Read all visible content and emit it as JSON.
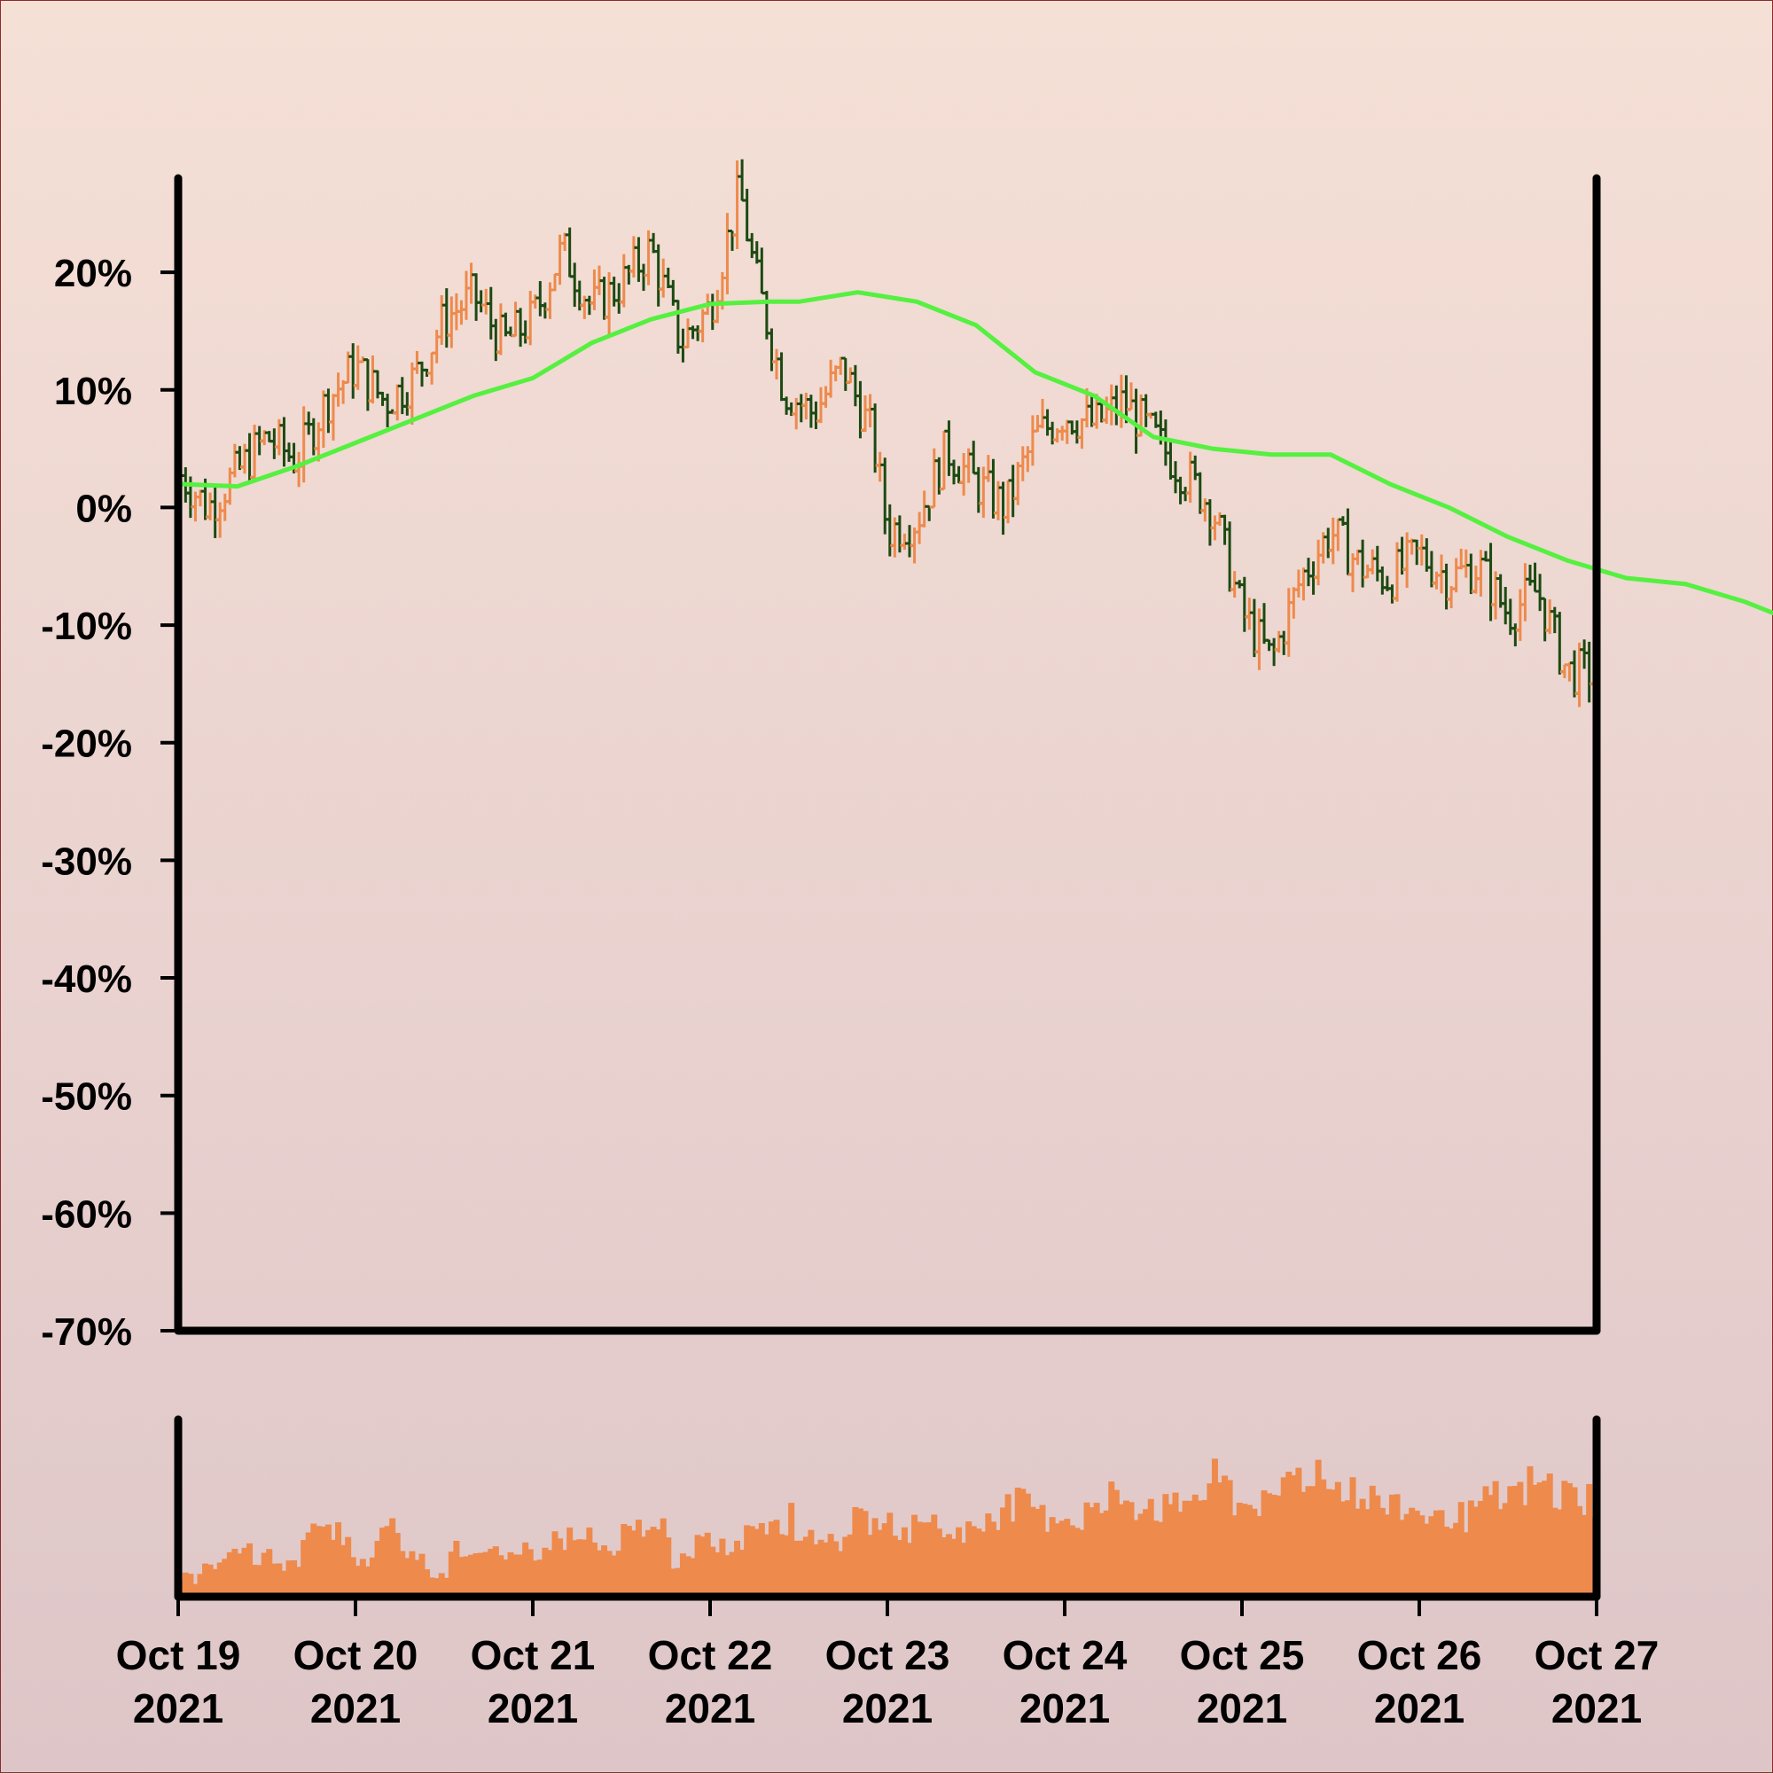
{
  "chart_data": {
    "type": "ohlc",
    "title": "",
    "xlabel": "",
    "ylabel": "",
    "y_unit": "%",
    "ylim": [
      -70,
      28
    ],
    "yticks": [
      20,
      10,
      0,
      -10,
      -20,
      -30,
      -40,
      -50,
      -60,
      -70
    ],
    "ytick_labels": [
      "20%",
      "10%",
      "0%",
      "-10%",
      "-20%",
      "-30%",
      "-40%",
      "-50%",
      "-60%",
      "-70%"
    ],
    "xlim": [
      "2021-10-19",
      "2021-10-27"
    ],
    "xtick_dates": [
      "2021-10-19",
      "2021-10-20",
      "2021-10-21",
      "2021-10-22",
      "2021-10-23",
      "2021-10-24",
      "2021-10-25",
      "2021-10-26",
      "2021-10-27"
    ],
    "xtick_labels": [
      {
        "line1": "Oct 19",
        "line2": "2021"
      },
      {
        "line1": "Oct 20",
        "line2": "2021"
      },
      {
        "line1": "Oct 21",
        "line2": "2021"
      },
      {
        "line1": "Oct 22",
        "line2": "2021"
      },
      {
        "line1": "Oct 23",
        "line2": "2021"
      },
      {
        "line1": "Oct 24",
        "line2": "2021"
      },
      {
        "line1": "Oct 25",
        "line2": "2021"
      },
      {
        "line1": "Oct 26",
        "line2": "2021"
      },
      {
        "line1": "Oct 27",
        "line2": "2021"
      }
    ],
    "grid": false,
    "legend": "none",
    "colors": {
      "up": "#ee8a4c",
      "down": "#1c4a12",
      "moving_average": "#55f040",
      "volume": "#ee8a4c",
      "axes": "#000000"
    },
    "close_path": [
      [
        "2021-10-19T00:00",
        3
      ],
      [
        "2021-10-19T04:00",
        0
      ],
      [
        "2021-10-19T08:00",
        3
      ],
      [
        "2021-10-19T12:00",
        6
      ],
      [
        "2021-10-19T16:00",
        4
      ],
      [
        "2021-10-19T20:00",
        9
      ],
      [
        "2021-10-20T00:00",
        12
      ],
      [
        "2021-10-20T04:00",
        9
      ],
      [
        "2021-10-20T08:00",
        11
      ],
      [
        "2021-10-20T12:00",
        16
      ],
      [
        "2021-10-20T16:00",
        18
      ],
      [
        "2021-10-20T20:00",
        14
      ],
      [
        "2021-10-21T00:00",
        16
      ],
      [
        "2021-10-21T04:00",
        22
      ],
      [
        "2021-10-21T08:00",
        17
      ],
      [
        "2021-10-21T12:00",
        19
      ],
      [
        "2021-10-21T16:00",
        22
      ],
      [
        "2021-10-21T20:00",
        14
      ],
      [
        "2021-10-22T00:00",
        17
      ],
      [
        "2021-10-22T04:00",
        27
      ],
      [
        "2021-10-22T06:00",
        20
      ],
      [
        "2021-10-22T10:00",
        10
      ],
      [
        "2021-10-22T14:00",
        8
      ],
      [
        "2021-10-22T18:00",
        12
      ],
      [
        "2021-10-22T22:00",
        6
      ],
      [
        "2021-10-23T00:00",
        -2
      ],
      [
        "2021-10-23T04:00",
        -1
      ],
      [
        "2021-10-23T08:00",
        5
      ],
      [
        "2021-10-23T12:00",
        2
      ],
      [
        "2021-10-23T16:00",
        0
      ],
      [
        "2021-10-23T20:00",
        6
      ],
      [
        "2021-10-24T00:00",
        8
      ],
      [
        "2021-10-24T04:00",
        7
      ],
      [
        "2021-10-24T08:00",
        9
      ],
      [
        "2021-10-24T12:00",
        6
      ],
      [
        "2021-10-24T16:00",
        3
      ],
      [
        "2021-10-24T20:00",
        0
      ],
      [
        "2021-10-25T00:00",
        -9
      ],
      [
        "2021-10-25T04:00",
        -13
      ],
      [
        "2021-10-25T08:00",
        -6
      ],
      [
        "2021-10-25T12:00",
        -2
      ],
      [
        "2021-10-25T16:00",
        -5
      ],
      [
        "2021-10-25T20:00",
        -6
      ],
      [
        "2021-10-26T00:00",
        -4
      ],
      [
        "2021-10-26T04:00",
        -6
      ],
      [
        "2021-10-26T08:00",
        -5
      ],
      [
        "2021-10-26T12:00",
        -9
      ],
      [
        "2021-10-26T16:00",
        -7
      ],
      [
        "2021-10-26T20:00",
        -14
      ],
      [
        "2021-10-27T00:00",
        -14
      ],
      [
        "2021-10-27T04:00",
        -16
      ],
      [
        "2021-10-27T08:00",
        -11
      ],
      [
        "2021-10-27T12:00",
        -8
      ],
      [
        "2021-10-27T16:00",
        -5
      ],
      [
        "2021-10-27T20:00",
        -8
      ],
      [
        "2021-10-28T00:00",
        -9
      ]
    ],
    "moving_average": [
      [
        "2021-10-19T00:00",
        2
      ],
      [
        "2021-10-19T08:00",
        1.8
      ],
      [
        "2021-10-19T16:00",
        3.5
      ],
      [
        "2021-10-20T00:00",
        5.5
      ],
      [
        "2021-10-20T08:00",
        7.5
      ],
      [
        "2021-10-20T16:00",
        9.5
      ],
      [
        "2021-10-21T00:00",
        11
      ],
      [
        "2021-10-21T08:00",
        14
      ],
      [
        "2021-10-21T16:00",
        16
      ],
      [
        "2021-10-22T00:00",
        17.3
      ],
      [
        "2021-10-22T08:00",
        17.5
      ],
      [
        "2021-10-22T12:00",
        17.5
      ],
      [
        "2021-10-22T20:00",
        18.3
      ],
      [
        "2021-10-23T04:00",
        17.5
      ],
      [
        "2021-10-23T12:00",
        15.5
      ],
      [
        "2021-10-23T20:00",
        11.5
      ],
      [
        "2021-10-24T04:00",
        9.5
      ],
      [
        "2021-10-24T12:00",
        6
      ],
      [
        "2021-10-24T20:00",
        5
      ],
      [
        "2021-10-25T04:00",
        4.5
      ],
      [
        "2021-10-25T12:00",
        4.5
      ],
      [
        "2021-10-25T20:00",
        2
      ],
      [
        "2021-10-26T04:00",
        0
      ],
      [
        "2021-10-26T12:00",
        -2.5
      ],
      [
        "2021-10-26T20:00",
        -4.5
      ],
      [
        "2021-10-27T04:00",
        -6
      ],
      [
        "2021-10-27T12:00",
        -6.5
      ],
      [
        "2021-10-27T20:00",
        -8
      ],
      [
        "2021-10-28T00:00",
        -9
      ]
    ],
    "volume_relative": [
      0.1,
      0.15,
      0.28,
      0.22,
      0.2,
      0.4,
      0.38,
      0.18,
      0.4,
      0.25,
      0.12,
      0.3,
      0.25,
      0.22,
      0.28,
      0.35,
      0.36,
      0.25,
      0.4,
      0.42,
      0.2,
      0.32,
      0.3,
      0.45,
      0.5,
      0.38,
      0.35,
      0.45,
      0.46,
      0.42,
      0.48,
      0.4,
      0.4,
      0.55,
      0.6,
      0.52,
      0.48,
      0.56,
      0.62,
      0.58,
      0.55,
      0.66,
      0.72,
      0.6,
      0.58,
      0.8,
      0.78,
      0.7,
      0.62,
      0.58,
      0.55,
      0.5,
      0.52,
      0.6,
      0.65,
      0.7,
      0.66,
      0.62
    ]
  }
}
